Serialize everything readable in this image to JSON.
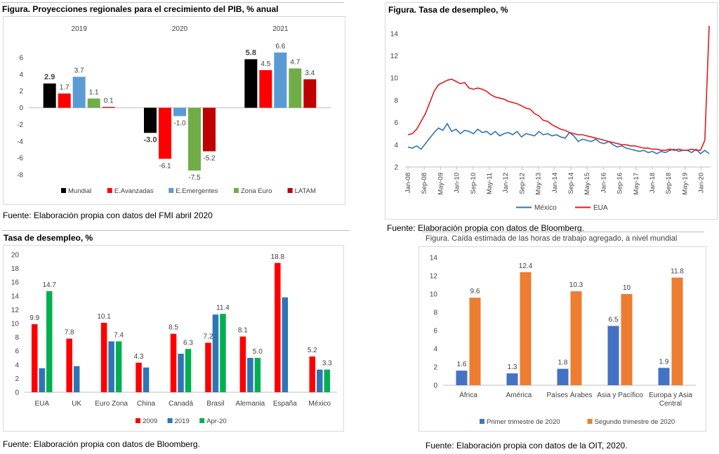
{
  "panels": {
    "gdp": {
      "title": "Figura. Proyecciones regionales para el crecimiento del PIB, % anual",
      "source": "Fuente: Elaboración propia con datos del FMI abril 2020"
    },
    "unemp_line": {
      "title": "Figura. Tasa de desempleo, %",
      "source": "Fuente: Elaboración propia con datos de Bloomberg."
    },
    "unemp_bar": {
      "title": "Tasa de desempleo, %",
      "source": "Fuente: Elaboración propia con datos de Bloomberg."
    },
    "hours": {
      "title": "Figura. Caída estimada de las horas de trabajo agregado, a nivel mundial",
      "source": "Fuente: Elaboración propia con datos de la OIT, 2020."
    }
  },
  "chart_data": [
    {
      "id": "gdp",
      "type": "bar",
      "categories": [
        "2019",
        "2020",
        "2021"
      ],
      "series": [
        {
          "name": "Mundial",
          "color": "#000000",
          "values": [
            2.9,
            -3.0,
            5.8
          ],
          "labels": [
            "2.9",
            "-3.0",
            "5.8"
          ]
        },
        {
          "name": "E.Avanzadas",
          "color": "#ff0000",
          "values": [
            1.7,
            -6.1,
            4.5
          ],
          "labels": [
            "1.7",
            "-6.1",
            "4.5"
          ]
        },
        {
          "name": "E.Emergentes",
          "color": "#5b9bd5",
          "values": [
            3.7,
            -1.0,
            6.6
          ],
          "labels": [
            "3.7",
            "-1.0",
            "6.6"
          ]
        },
        {
          "name": "Zona Euro",
          "color": "#70ad47",
          "values": [
            1.1,
            -7.5,
            4.7
          ],
          "labels": [
            "1.1",
            "-7.5",
            "4.7"
          ]
        },
        {
          "name": "LATAM",
          "color": "#c00000",
          "values": [
            0.1,
            -5.2,
            3.4
          ],
          "labels": [
            "0.1",
            "-5.2",
            "3.4"
          ]
        }
      ],
      "ylim": [
        -8,
        6
      ],
      "yticks": [
        -8,
        -6,
        -4,
        -2,
        0,
        2,
        4,
        6
      ],
      "legend": "bottom"
    },
    {
      "id": "unemp_line",
      "type": "line",
      "x_ticks": [
        "Jan-08",
        "Sep-08",
        "May-09",
        "Jan-10",
        "Sep-10",
        "May-11",
        "Jan-12",
        "Sep-12",
        "May-13",
        "Jan-14",
        "Sep-14",
        "May-15",
        "Jan-16",
        "Sep-16",
        "May-17",
        "Jan-18",
        "Sep-18",
        "May-19",
        "Jan-20"
      ],
      "series": [
        {
          "name": "México",
          "color": "#2e75b6",
          "values": [
            3.8,
            3.7,
            3.9,
            3.6,
            4.1,
            4.6,
            5.1,
            5.5,
            5.3,
            5.9,
            5.2,
            5.4,
            5.0,
            5.3,
            5.2,
            5.0,
            5.4,
            5.1,
            5.2,
            4.9,
            5.2,
            4.8,
            5.0,
            5.1,
            4.9,
            5.2,
            4.7,
            5.0,
            4.9,
            4.8,
            5.2,
            4.9,
            5.0,
            4.8,
            4.9,
            4.7,
            4.6,
            5.1,
            4.8,
            4.3,
            4.5,
            4.4,
            4.3,
            4.5,
            4.2,
            4.1,
            4.3,
            4.0,
            3.8,
            3.9,
            3.7,
            3.6,
            3.5,
            3.4,
            3.5,
            3.3,
            3.4,
            3.2,
            3.4,
            3.3,
            3.5,
            3.6,
            3.4,
            3.5,
            3.5,
            3.3,
            3.6,
            3.2,
            3.5,
            3.2
          ]
        },
        {
          "name": "EUA",
          "color": "#e31a1c",
          "values": [
            4.9,
            5.0,
            5.4,
            6.1,
            6.8,
            7.8,
            8.8,
            9.4,
            9.6,
            9.8,
            9.9,
            9.7,
            9.5,
            9.6,
            9.1,
            9.0,
            9.1,
            9.0,
            8.8,
            8.5,
            8.3,
            8.2,
            8.1,
            7.9,
            7.8,
            7.7,
            7.5,
            7.3,
            7.2,
            6.8,
            6.6,
            6.2,
            6.1,
            5.8,
            5.6,
            5.4,
            5.3,
            5.1,
            5.0,
            4.9,
            4.9,
            4.8,
            4.7,
            4.6,
            4.5,
            4.4,
            4.3,
            4.2,
            4.1,
            4.0,
            4.0,
            3.9,
            3.9,
            3.8,
            3.7,
            3.7,
            3.6,
            3.6,
            3.5,
            3.5,
            3.6,
            3.5,
            3.6,
            3.5,
            3.5,
            3.6,
            3.5,
            3.5,
            4.4,
            14.7
          ]
        }
      ],
      "ylim": [
        2,
        15
      ],
      "yticks": [
        2,
        4,
        6,
        8,
        10,
        12,
        14
      ],
      "legend": "bottom"
    },
    {
      "id": "unemp_bar",
      "type": "bar",
      "categories": [
        "EUA",
        "UK",
        "Euro Zona",
        "China",
        "Canadá",
        "Brasil",
        "Alemania",
        "España",
        "México"
      ],
      "series": [
        {
          "name": "2009",
          "color": "#ff0000",
          "values": [
            9.9,
            7.8,
            10.1,
            4.3,
            8.5,
            7.2,
            8.1,
            18.8,
            5.2
          ],
          "labels": [
            "9.9",
            "7.8",
            "10.1",
            "4.3",
            "8.5",
            "7.2",
            "8.1",
            "18.8",
            "5.2"
          ]
        },
        {
          "name": "2019",
          "color": "#2e75b6",
          "values": [
            3.5,
            3.8,
            7.4,
            3.6,
            5.6,
            11.3,
            5.0,
            13.8,
            3.3
          ],
          "labels": [
            "",
            "",
            "",
            "",
            "",
            "",
            "",
            "",
            ""
          ]
        },
        {
          "name": "Apr-20",
          "color": "#00b050",
          "values": [
            14.7,
            null,
            7.4,
            null,
            6.3,
            11.4,
            5.0,
            null,
            3.3
          ],
          "labels": [
            "14.7",
            "",
            "7.4",
            "",
            "6.3",
            "11.4",
            "5.0",
            "",
            "3.3"
          ]
        }
      ],
      "ylim": [
        0,
        20
      ],
      "yticks": [
        0,
        2,
        4,
        6,
        8,
        10,
        12,
        14,
        16,
        18,
        20
      ],
      "legend": "bottom"
    },
    {
      "id": "hours",
      "type": "bar",
      "categories": [
        "África",
        "América",
        "Países Árabes",
        "Asia y Pacífico",
        "Europa y Asia|Central"
      ],
      "series": [
        {
          "name": "Primer trimestre de 2020",
          "color": "#4472c4",
          "values": [
            1.6,
            1.3,
            1.8,
            6.5,
            1.9
          ],
          "labels": [
            "1.6",
            "1.3",
            "1.8",
            "6.5",
            "1.9"
          ]
        },
        {
          "name": "Segundo trimestre de 2020",
          "color": "#ed7d31",
          "values": [
            9.6,
            12.4,
            10.3,
            10,
            11.8
          ],
          "labels": [
            "9.6",
            "12.4",
            "10.3",
            "10",
            "11.8"
          ]
        }
      ],
      "ylim": [
        0,
        14
      ],
      "yticks": [
        0,
        2,
        4,
        6,
        8,
        10,
        12,
        14
      ],
      "legend": "bottom"
    }
  ]
}
